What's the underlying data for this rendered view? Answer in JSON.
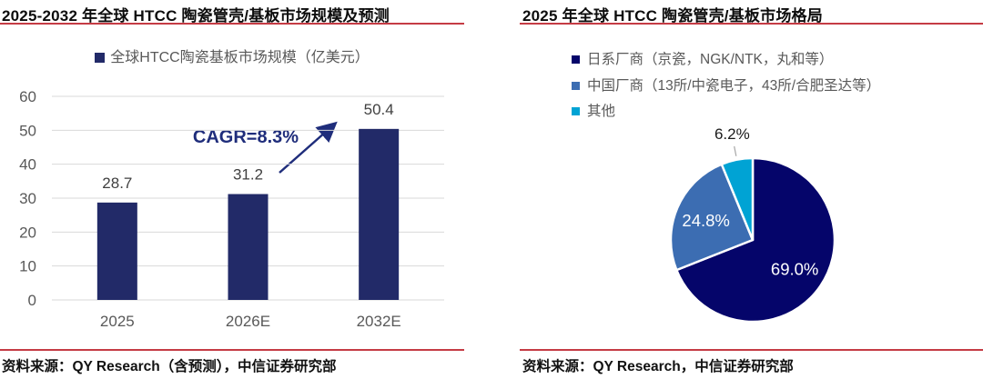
{
  "colors": {
    "accent_red": "#C53B44",
    "bar_navy": "#222A68",
    "pie_navy": "#05056A",
    "pie_blue": "#3C6DB2",
    "pie_cyan": "#00A3D4",
    "annotation_navy": "#1F2D7B",
    "axis_text": "#595959",
    "value_text": "#404040",
    "gridline": "#D9D9D9",
    "leader_gray": "#A6A6A6"
  },
  "chart_data": [
    {
      "type": "bar",
      "title": "2025-2032 年全球 HTCC 陶瓷管壳/基板市场规模及预测",
      "legend": [
        "全球HTCC陶瓷基板市场规模（亿美元）"
      ],
      "legend_position": "top-center",
      "categories": [
        "2025",
        "2026E",
        "2032E"
      ],
      "values": [
        28.7,
        31.2,
        50.4
      ],
      "value_labels": [
        "28.7",
        "31.2",
        "50.4"
      ],
      "ylim": [
        0,
        60
      ],
      "yticks": [
        0,
        10,
        20,
        30,
        40,
        50,
        60
      ],
      "grid": true,
      "annotation": "CAGR=8.3%",
      "source": "资料来源：QY Research（含预测），中信证券研究部"
    },
    {
      "type": "pie",
      "title": "2025 年全球 HTCC 陶瓷管壳/基板市场格局",
      "legend_position": "top-left",
      "start_angle_deg": 0,
      "direction": "clockwise",
      "slices": [
        {
          "label": "日系厂商（京瓷，NGK/NTK，丸和等）",
          "value": 69.0,
          "data_label": "69.0%",
          "color": "#05056A"
        },
        {
          "label": "中国厂商（13所/中瓷电子，43所/合肥圣达等）",
          "value": 24.8,
          "data_label": "24.8%",
          "color": "#3C6DB2"
        },
        {
          "label": "其他",
          "value": 6.2,
          "data_label": "6.2%",
          "color": "#00A3D4"
        }
      ],
      "source": "资料来源：QY Research，中信证券研究部"
    }
  ]
}
